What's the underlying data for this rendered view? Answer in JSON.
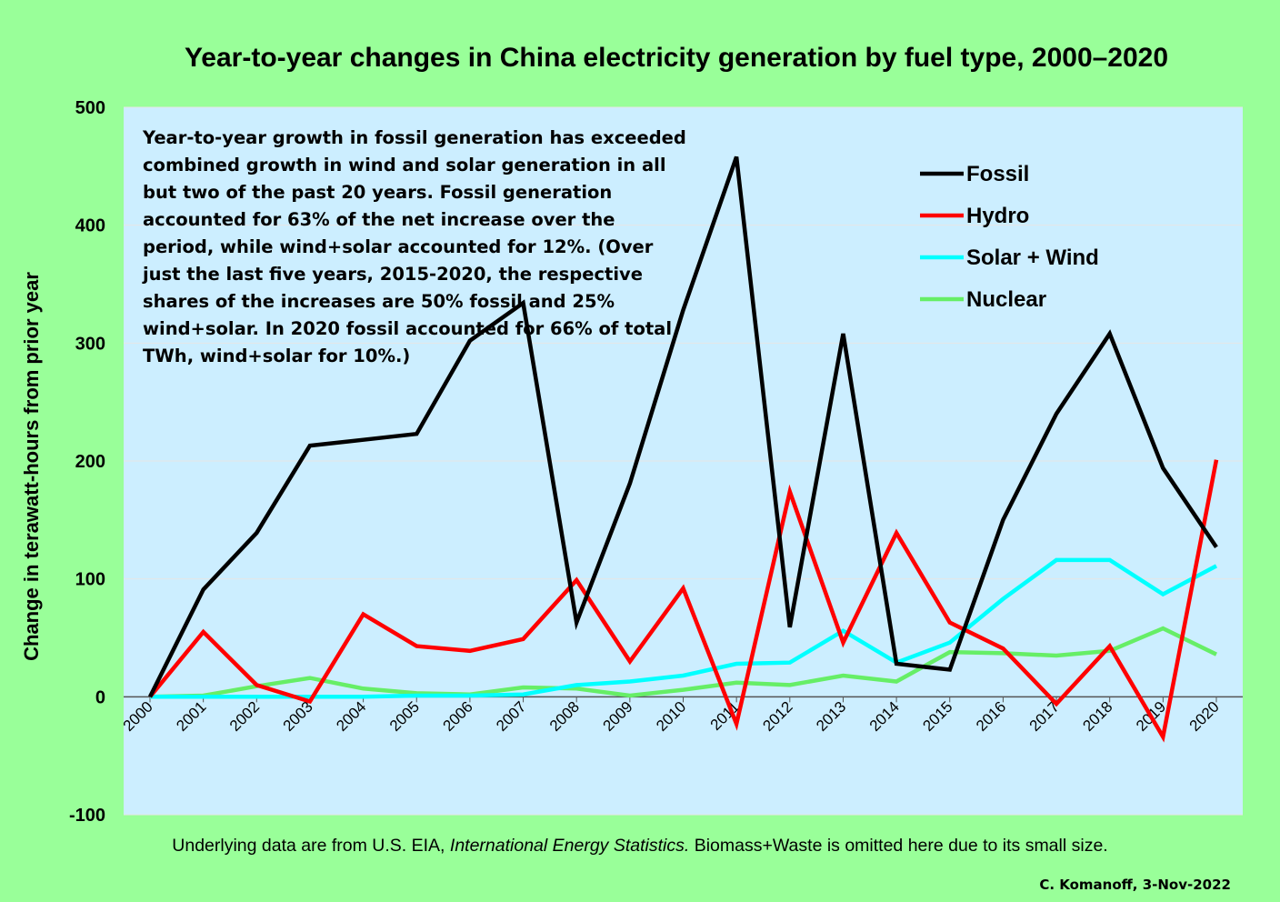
{
  "chart_data": {
    "type": "line",
    "title": "Year-to-year changes in China electricity generation by fuel type, 2000–2020",
    "ylabel": "Change in terawatt-hours from prior year",
    "xlabel": "",
    "ylim": [
      -100,
      500
    ],
    "yticks": [
      "500",
      "400",
      "300",
      "200",
      "100",
      "0",
      "-100"
    ],
    "yticks_values": [
      500,
      400,
      300,
      200,
      100,
      0,
      -100
    ],
    "categories": [
      "2000",
      "2001",
      "2002",
      "2003",
      "2004",
      "2005",
      "2006",
      "2007",
      "2008",
      "2009",
      "2010",
      "2011",
      "2012",
      "2013",
      "2014",
      "2015",
      "2016",
      "2017",
      "2018",
      "2019",
      "2020"
    ],
    "grid": true,
    "legend_position": "top-right",
    "series": [
      {
        "name": "Fossil",
        "color": "#000000",
        "values": [
          0,
          91,
          139,
          213,
          218,
          223,
          302,
          334,
          63,
          181,
          328,
          458,
          59,
          308,
          28,
          23,
          150,
          240,
          308,
          194,
          127
        ]
      },
      {
        "name": "Hydro",
        "color": "#ff0000",
        "values": [
          0,
          55,
          10,
          -4,
          70,
          43,
          39,
          49,
          99,
          30,
          92,
          -23,
          174,
          46,
          139,
          63,
          41,
          -6,
          43,
          -34,
          201
        ]
      },
      {
        "name": "Solar + Wind",
        "color": "#00ffff",
        "values": [
          0,
          0,
          0,
          0,
          0,
          1,
          1,
          2,
          10,
          13,
          18,
          28,
          29,
          56,
          29,
          46,
          83,
          116,
          116,
          87,
          111
        ]
      },
      {
        "name": "Nuclear",
        "color": "#66ee66",
        "values": [
          0,
          1,
          9,
          16,
          7,
          3,
          2,
          8,
          7,
          1,
          6,
          12,
          10,
          18,
          13,
          38,
          37,
          35,
          39,
          58,
          36
        ]
      }
    ],
    "annotation": "Year-to-year growth in fossil generation has exceeded combined growth in wind and solar generation in all but two of the past 20 years. Fossil generation accounted for 63% of the net increase over the period, while wind+solar accounted for 12%. (Over just the last five years, 2015-2020, the respective shares of the increases are 50% fossil and 25% wind+solar. In 2020 fossil accounted for 66% of total TWh, wind+solar for 10%.)"
  },
  "footer": {
    "source_before": "Underlying data are from U.S. EIA, ",
    "source_italic": "International Energy Statistics.",
    "source_after": " Biomass+Waste is omitted here due to its small size.",
    "credit": "C. Komanoff, 3-Nov-2022"
  },
  "colors": {
    "page_background": "#99ff99",
    "plot_background": "#cceeff",
    "gridline": "#e6e6e6"
  }
}
